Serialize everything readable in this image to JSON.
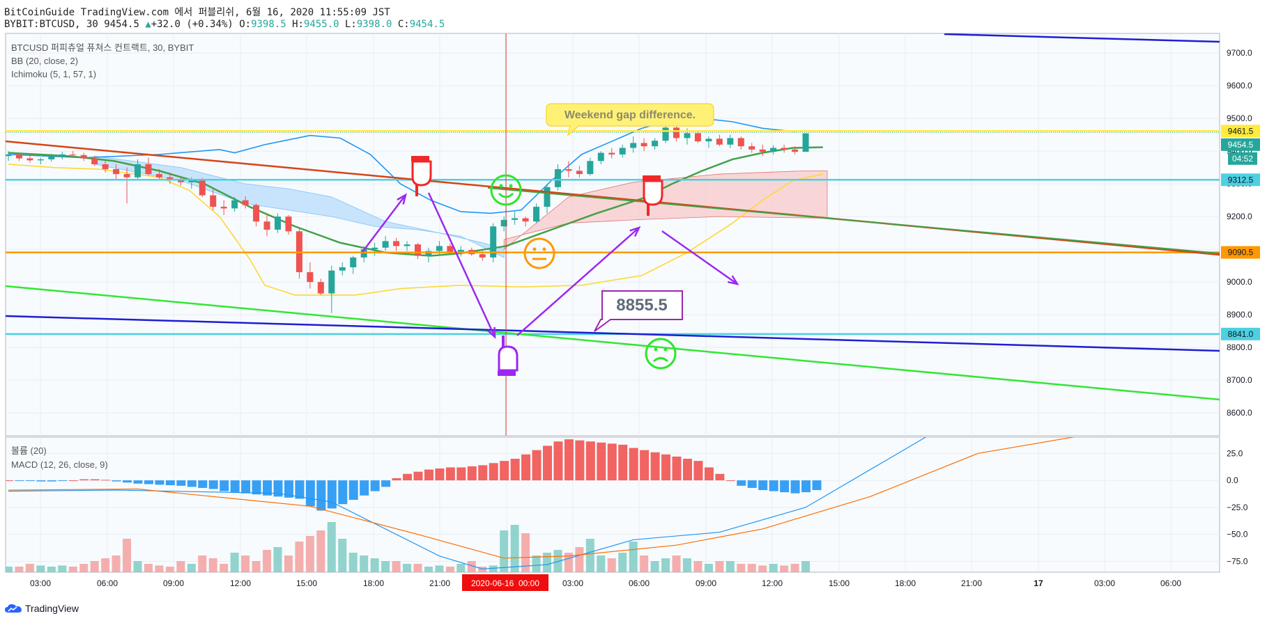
{
  "header": {
    "line1": "BitCoinGuide TradingView.com 에서 퍼블리쉬, 6월 16, 2020 11:55:09 JST",
    "symbol": "BYBIT:BTCUSD, 30",
    "price": "9454.5",
    "change": "+32.0 (+0.34%)",
    "o_label": "O:",
    "o_val": "9398.5",
    "h_label": "H:",
    "h_val": "9455.0",
    "l_label": "L:",
    "l_val": "9398.0",
    "c_label": "C:",
    "c_val": "9454.5"
  },
  "legend": {
    "main": "BTCUSD 퍼피츄얼 퓨쳐스 컨트랙트, 30, BYBIT",
    "bb": "BB (20, close, 2)",
    "ichimoku": "Ichimoku (5, 1, 57, 1)",
    "volume": "볼륨 (20)",
    "macd": "MACD (12, 26, close, 9)"
  },
  "annotations": {
    "callout": "Weekend gap difference.",
    "box_label": "8855.5"
  },
  "price_tags": {
    "yellow": "9461.5",
    "current": "9454.5",
    "countdown": "04:52",
    "cyan_upper": "9312.5",
    "orange": "9090.5",
    "cyan_lower": "8841.0"
  },
  "chart_data": [
    {
      "type": "candlestick",
      "ylim": [
        8530,
        9760
      ],
      "y_ticks": [
        9700,
        9600,
        9500,
        9400,
        9300,
        9200,
        9100,
        9000,
        8900,
        8800,
        8700,
        8600
      ],
      "y_tick_labels": [
        "9700.0",
        "9600.0",
        "9500.0",
        "9400.0",
        "9300.0",
        "9200.0",
        "9100.0",
        "9000.0",
        "8900.0",
        "8800.0",
        "8700.0",
        "8600.0"
      ],
      "x_tick_labels": [
        "03:00",
        "06:00",
        "09:00",
        "12:00",
        "15:00",
        "18:00",
        "21:00",
        "",
        "03:00",
        "06:00",
        "09:00",
        "12:00",
        "15:00",
        "18:00",
        "21:00",
        "17",
        "03:00",
        "06:00"
      ],
      "crosshair_date_label": "2020-06-16  00:00",
      "candles_ohlc": [
        [
          9385,
          9400,
          9370,
          9390
        ],
        [
          9390,
          9395,
          9370,
          9378
        ],
        [
          9378,
          9385,
          9365,
          9372
        ],
        [
          9372,
          9380,
          9360,
          9375
        ],
        [
          9375,
          9392,
          9368,
          9385
        ],
        [
          9385,
          9398,
          9375,
          9390
        ],
        [
          9390,
          9400,
          9380,
          9388
        ],
        [
          9388,
          9395,
          9370,
          9378
        ],
        [
          9378,
          9385,
          9355,
          9360
        ],
        [
          9360,
          9370,
          9335,
          9345
        ],
        [
          9345,
          9360,
          9310,
          9330
        ],
        [
          9330,
          9350,
          9240,
          9320
        ],
        [
          9320,
          9375,
          9310,
          9360
        ],
        [
          9360,
          9380,
          9325,
          9330
        ],
        [
          9330,
          9345,
          9315,
          9320
        ],
        [
          9320,
          9335,
          9300,
          9310
        ],
        [
          9310,
          9320,
          9295,
          9305
        ],
        [
          9305,
          9320,
          9285,
          9310
        ],
        [
          9310,
          9318,
          9260,
          9265
        ],
        [
          9265,
          9285,
          9220,
          9230
        ],
        [
          9230,
          9250,
          9205,
          9225
        ],
        [
          9225,
          9260,
          9215,
          9250
        ],
        [
          9250,
          9262,
          9225,
          9235
        ],
        [
          9235,
          9240,
          9170,
          9185
        ],
        [
          9185,
          9210,
          9140,
          9160
        ],
        [
          9160,
          9210,
          9150,
          9200
        ],
        [
          9200,
          9205,
          9145,
          9155
        ],
        [
          9155,
          9165,
          9010,
          9030
        ],
        [
          9030,
          9060,
          8980,
          9000
        ],
        [
          9000,
          9010,
          8960,
          8965
        ],
        [
          8965,
          9050,
          8905,
          9035
        ],
        [
          9035,
          9060,
          9020,
          9045
        ],
        [
          9045,
          9080,
          9025,
          9075
        ],
        [
          9075,
          9110,
          9060,
          9100
        ],
        [
          9100,
          9120,
          9080,
          9105
        ],
        [
          9105,
          9140,
          9095,
          9125
        ],
        [
          9125,
          9135,
          9095,
          9110
        ],
        [
          9110,
          9125,
          9095,
          9115
        ],
        [
          9115,
          9120,
          9070,
          9080
        ],
        [
          9080,
          9105,
          9060,
          9095
        ],
        [
          9095,
          9125,
          9080,
          9110
        ],
        [
          9110,
          9118,
          9085,
          9090
        ],
        [
          9090,
          9110,
          9078,
          9098
        ],
        [
          9098,
          9105,
          9080,
          9085
        ],
        [
          9085,
          9095,
          9065,
          9075
        ],
        [
          9075,
          9180,
          9060,
          9170
        ],
        [
          9170,
          9200,
          9155,
          9190
        ],
        [
          9190,
          9215,
          9175,
          9195
        ],
        [
          9195,
          9200,
          9170,
          9185
        ],
        [
          9185,
          9240,
          9180,
          9230
        ],
        [
          9230,
          9300,
          9210,
          9290
        ],
        [
          9290,
          9360,
          9280,
          9345
        ],
        [
          9345,
          9370,
          9320,
          9340
        ],
        [
          9340,
          9355,
          9320,
          9330
        ],
        [
          9330,
          9380,
          9325,
          9370
        ],
        [
          9370,
          9400,
          9360,
          9395
        ],
        [
          9395,
          9410,
          9378,
          9390
        ],
        [
          9390,
          9420,
          9380,
          9410
        ],
        [
          9410,
          9445,
          9395,
          9425
        ],
        [
          9425,
          9440,
          9400,
          9415
        ],
        [
          9415,
          9440,
          9405,
          9432
        ],
        [
          9432,
          9480,
          9425,
          9472
        ],
        [
          9472,
          9495,
          9430,
          9440
        ],
        [
          9440,
          9470,
          9420,
          9455
        ],
        [
          9455,
          9460,
          9425,
          9430
        ],
        [
          9430,
          9445,
          9410,
          9438
        ],
        [
          9438,
          9450,
          9415,
          9420
        ],
        [
          9420,
          9450,
          9410,
          9440
        ],
        [
          9440,
          9445,
          9405,
          9415
        ],
        [
          9415,
          9425,
          9395,
          9405
        ],
        [
          9405,
          9420,
          9385,
          9398
        ],
        [
          9398,
          9418,
          9390,
          9410
        ],
        [
          9410,
          9420,
          9395,
          9405
        ],
        [
          9405,
          9415,
          9390,
          9398
        ],
        [
          9398,
          9455,
          9398,
          9454.5
        ]
      ],
      "horizontal_levels": [
        {
          "value": 9461.5,
          "color": "#ffeb3b"
        },
        {
          "value": 9312.5,
          "color": "#4dd0e1"
        },
        {
          "value": 9090.5,
          "color": "#ff9800"
        },
        {
          "value": 8841.0,
          "color": "#4dd0e1"
        }
      ]
    },
    {
      "type": "macd_volume",
      "ylim": [
        -85,
        40
      ],
      "y_ticks": [
        25,
        0,
        -25,
        -50,
        -75
      ],
      "y_tick_labels": [
        "25.0",
        "0.0",
        "−25.0",
        "−50.0",
        "−75.0"
      ],
      "histogram": [
        0,
        -0.5,
        -0.5,
        -1,
        -1,
        -0.5,
        0,
        1,
        1,
        0.5,
        -1,
        -2,
        -3,
        -3.5,
        -4,
        -4.5,
        -5,
        -6,
        -7,
        -8,
        -10,
        -11,
        -12,
        -13,
        -14,
        -15,
        -16,
        -17,
        -24,
        -28,
        -26,
        -22,
        -18,
        -14,
        -10,
        -6,
        2,
        6,
        8,
        10,
        11,
        12,
        12,
        13,
        14,
        16,
        18,
        20,
        24,
        28,
        32,
        36,
        38,
        37,
        36,
        35,
        34,
        33,
        30,
        28,
        26,
        24,
        22,
        20,
        18,
        12,
        6,
        0,
        -5,
        -7,
        -9,
        -10,
        -11,
        -12,
        -11,
        -9
      ],
      "macd_line_points": [
        [
          0,
          -10
        ],
        [
          10,
          -9
        ],
        [
          25,
          -12
        ],
        [
          30,
          -20
        ],
        [
          40,
          -70
        ],
        [
          44,
          -82
        ],
        [
          50,
          -78
        ],
        [
          58,
          -55
        ],
        [
          66,
          -48
        ],
        [
          74,
          -25
        ],
        [
          80,
          10
        ],
        [
          86,
          45
        ]
      ],
      "signal_line_points": [
        [
          0,
          -9
        ],
        [
          12,
          -8
        ],
        [
          28,
          -24
        ],
        [
          38,
          -50
        ],
        [
          46,
          -72
        ],
        [
          52,
          -70
        ],
        [
          62,
          -60
        ],
        [
          70,
          -45
        ],
        [
          80,
          -15
        ],
        [
          90,
          25
        ],
        [
          100,
          42
        ]
      ],
      "volume_relative": [
        0.1,
        0.1,
        0.15,
        0.12,
        0.1,
        0.12,
        0.1,
        0.15,
        0.2,
        0.25,
        0.3,
        0.6,
        0.2,
        0.15,
        0.12,
        0.1,
        0.2,
        0.15,
        0.3,
        0.25,
        0.15,
        0.35,
        0.3,
        0.2,
        0.4,
        0.45,
        0.3,
        0.55,
        0.65,
        0.75,
        0.9,
        0.6,
        0.35,
        0.3,
        0.25,
        0.2,
        0.2,
        0.15,
        0.15,
        0.1,
        0.12,
        0.1,
        0.15,
        0.2,
        0.1,
        0.12,
        0.75,
        0.85,
        0.7,
        0.3,
        0.35,
        0.4,
        0.35,
        0.45,
        0.6,
        0.3,
        0.25,
        0.35,
        0.55,
        0.3,
        0.2,
        0.25,
        0.3,
        0.25,
        0.2,
        0.15,
        0.2,
        0.2,
        0.15,
        0.15,
        0.12,
        0.15,
        0.12,
        0.15,
        0.2
      ]
    }
  ]
}
